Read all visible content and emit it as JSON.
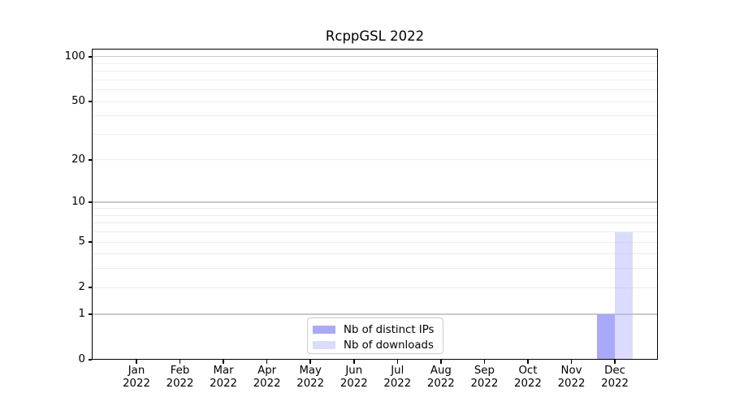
{
  "chart_data": {
    "type": "bar",
    "title": "RcppGSL 2022",
    "categories": [
      "Jan",
      "Feb",
      "Mar",
      "Apr",
      "May",
      "Jun",
      "Jul",
      "Aug",
      "Sep",
      "Oct",
      "Nov",
      "Dec"
    ],
    "category_year": "2022",
    "series": [
      {
        "name": "Nb of distinct IPs",
        "color": "#a9a9fa",
        "values": [
          0,
          0,
          0,
          0,
          0,
          0,
          0,
          0,
          0,
          0,
          0,
          1
        ]
      },
      {
        "name": "Nb of downloads",
        "color": "rgba(169,169,250,0.42)",
        "values": [
          0,
          0,
          0,
          0,
          0,
          0,
          0,
          0,
          0,
          0,
          0,
          6
        ]
      }
    ],
    "yscale": "log1p",
    "ylim": [
      0,
      113
    ],
    "ytick_values": [
      0,
      1,
      2,
      5,
      10,
      20,
      50,
      100
    ],
    "major_grid_values": [
      1,
      10,
      100
    ],
    "minor_grid_values": [
      2,
      3,
      4,
      5,
      6,
      7,
      8,
      9,
      20,
      30,
      40,
      50,
      60,
      70,
      80,
      90
    ],
    "xlabel": "",
    "ylabel": "",
    "grid": true,
    "legend_position": "lower center",
    "colors": {
      "major_grid": "#c9c9c9",
      "minor_grid": "#ececec",
      "spine": "#000000",
      "tick_label": "#000000",
      "background": "#ffffff"
    }
  }
}
